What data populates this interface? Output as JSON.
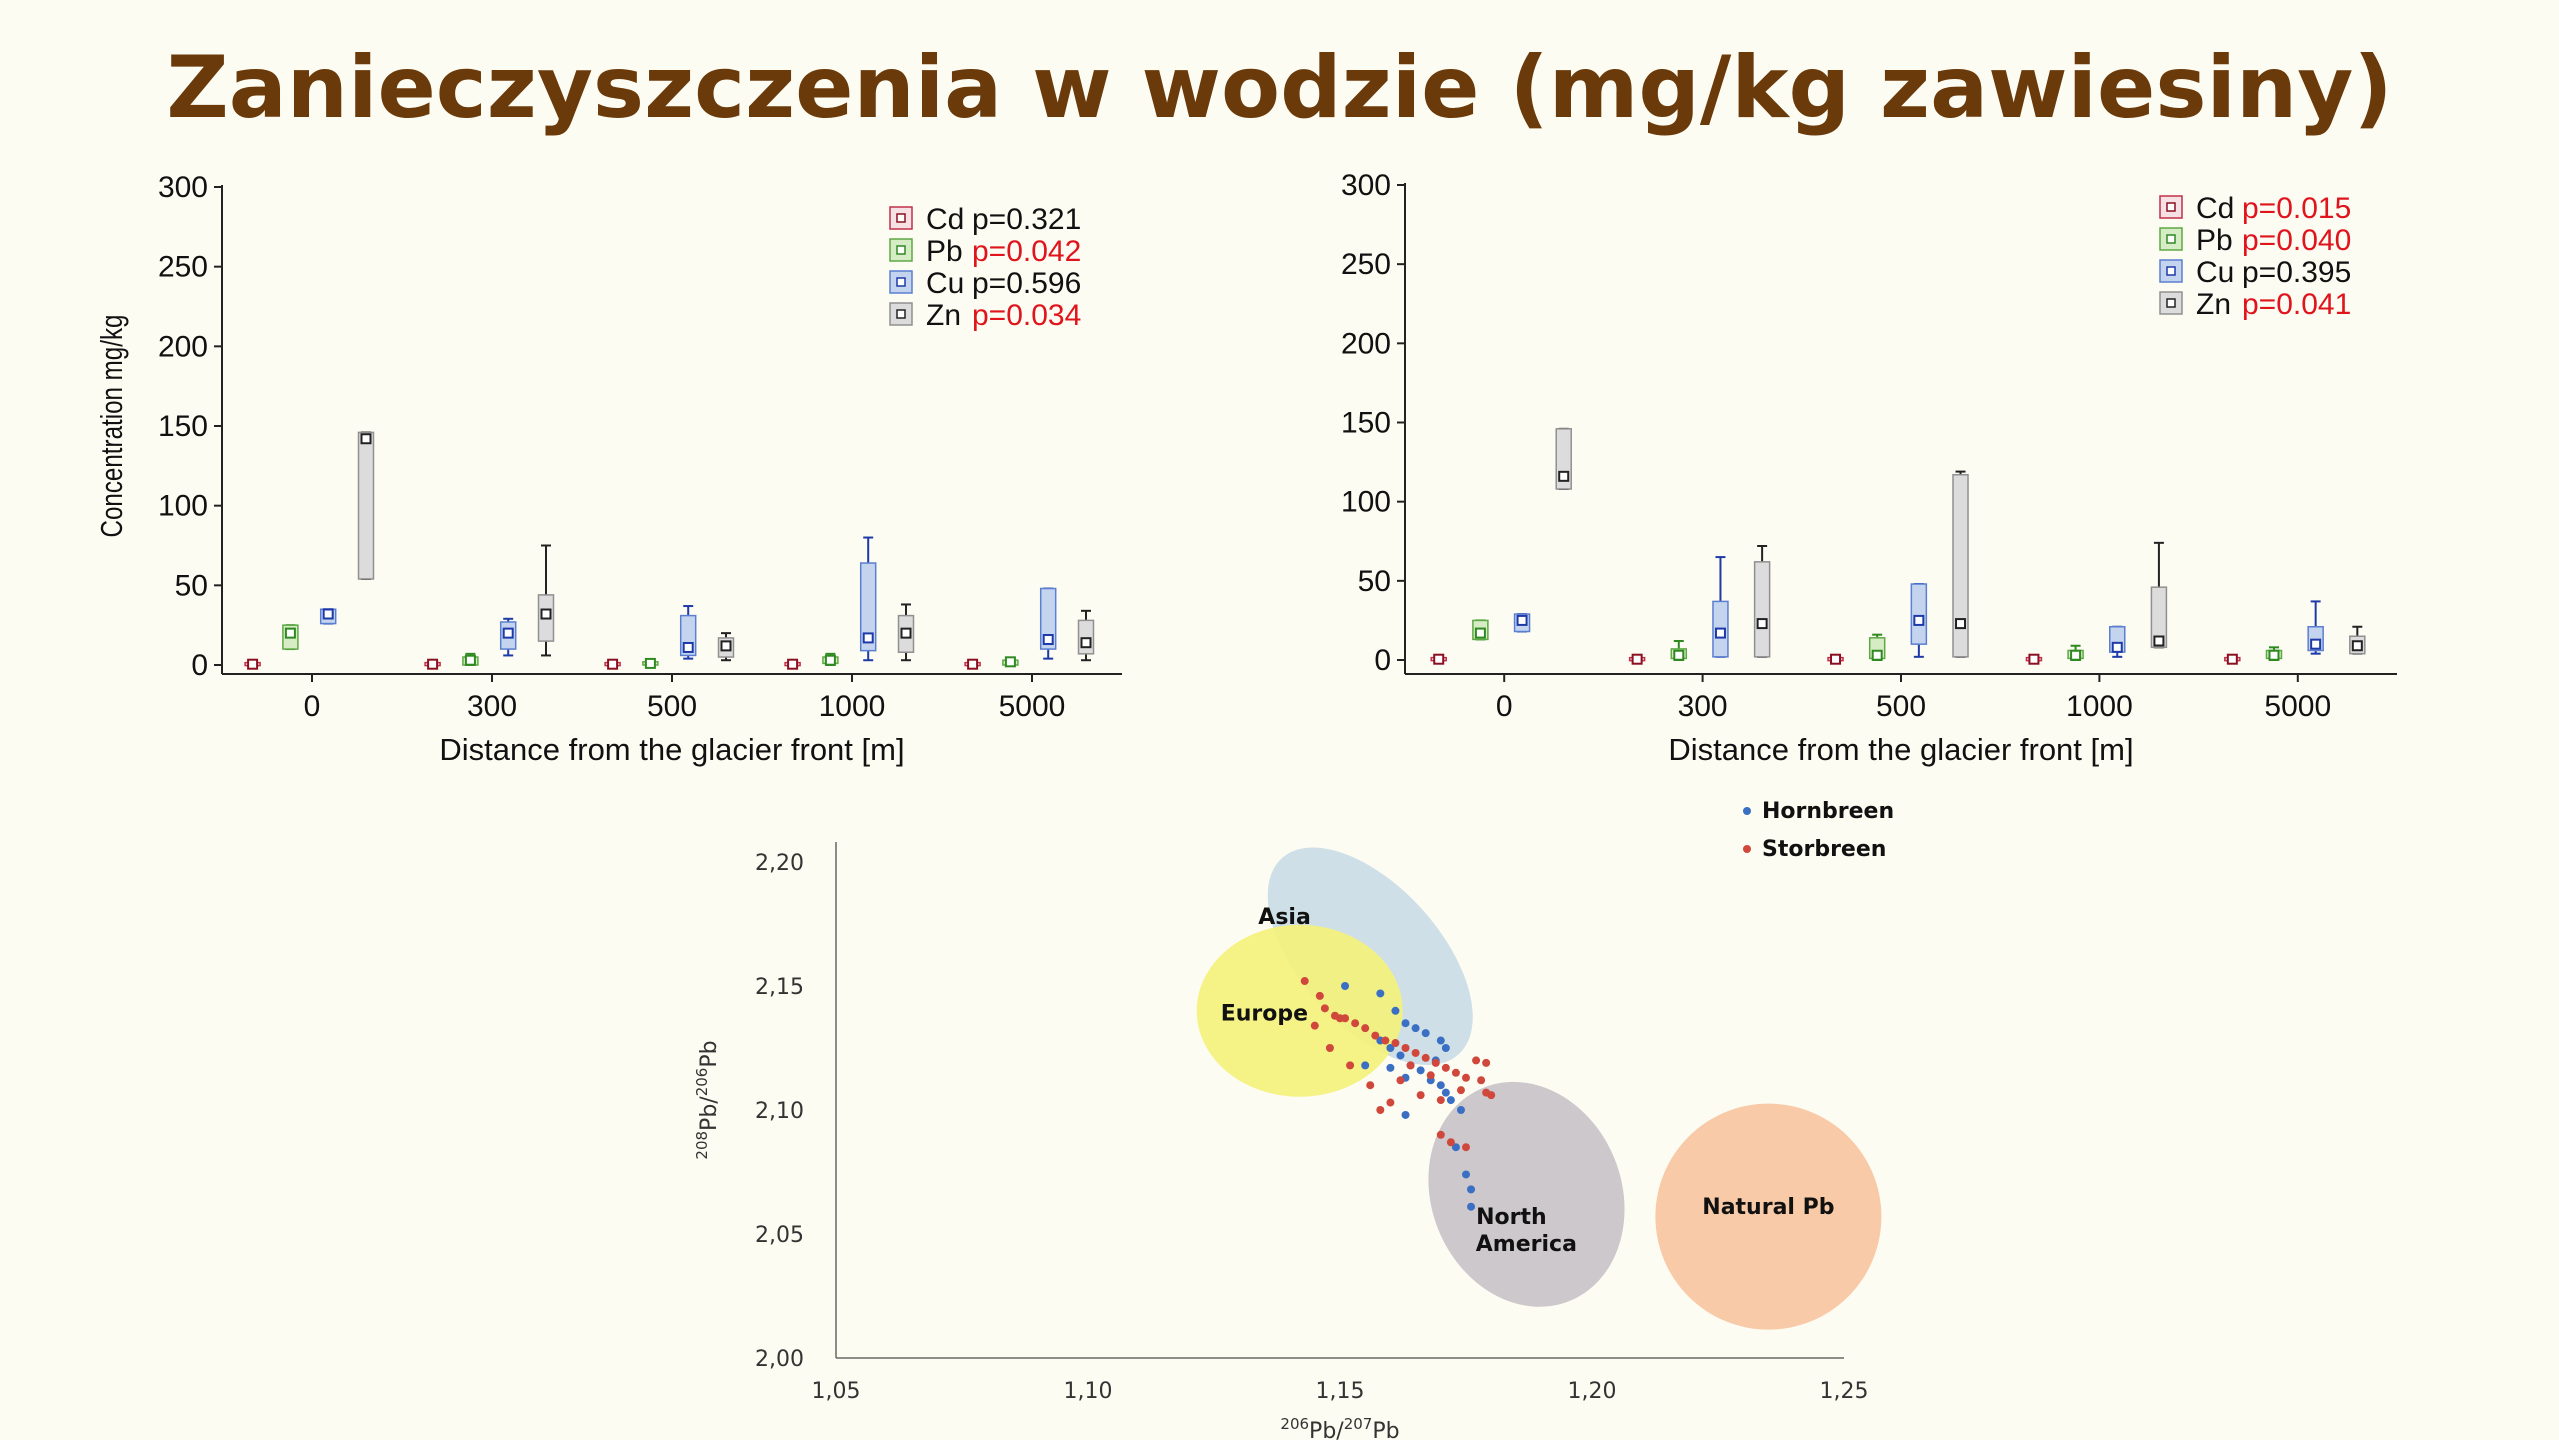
{
  "title": "Zanieczyszczenia w wodzie (mg/kg zawiesiny)",
  "colors": {
    "Cd": {
      "fill": "#f6e1e4",
      "stroke": "#c0304a",
      "marker": "#8a1020"
    },
    "Pb": {
      "fill": "#d6ecc4",
      "stroke": "#5ea845",
      "marker": "#2e8a20"
    },
    "Cu": {
      "fill": "#c4d4ef",
      "stroke": "#5b7fd0",
      "marker": "#1e3aa8"
    },
    "Zn": {
      "fill": "#dcdcdc",
      "stroke": "#909090",
      "marker": "#222222"
    }
  },
  "chart_data": [
    {
      "type": "box",
      "xlabel": "Distance from the glacier front [m]",
      "ylabel": "Concentration mg/kg",
      "ylim": [
        0,
        300
      ],
      "yticks": [
        "0",
        "50",
        "100",
        "150",
        "200",
        "250",
        "300"
      ],
      "categories": [
        "0",
        "300",
        "500",
        "1000",
        "5000"
      ],
      "legend": [
        {
          "metal": "Cd",
          "p": "p=0.321",
          "significant": false
        },
        {
          "metal": "Pb",
          "p": "p=0.042",
          "significant": true
        },
        {
          "metal": "Cu",
          "p": "p=0.596",
          "significant": false
        },
        {
          "metal": "Zn",
          "p": "p=0.034",
          "significant": true
        }
      ],
      "series": [
        {
          "name": "Cd",
          "boxes": [
            {
              "low": 0,
              "q1": 0,
              "median": 0.5,
              "q3": 1.5,
              "high": 1.5
            },
            {
              "low": 0,
              "q1": 0,
              "median": 0.5,
              "q3": 1.5,
              "high": 1.5
            },
            {
              "low": 0,
              "q1": 0,
              "median": 0.5,
              "q3": 1.5,
              "high": 1.5
            },
            {
              "low": 0,
              "q1": 0,
              "median": 0.5,
              "q3": 1.5,
              "high": 1.5
            },
            {
              "low": 0,
              "q1": 0,
              "median": 0.5,
              "q3": 1.5,
              "high": 1.5
            }
          ]
        },
        {
          "name": "Pb",
          "boxes": [
            {
              "low": 10,
              "q1": 10,
              "median": 20,
              "q3": 25,
              "high": 25
            },
            {
              "low": 0,
              "q1": 0,
              "median": 3,
              "q3": 5,
              "high": 7
            },
            {
              "low": 0,
              "q1": 0,
              "median": 1,
              "q3": 2,
              "high": 2
            },
            {
              "low": 0,
              "q1": 1,
              "median": 3,
              "q3": 5,
              "high": 7
            },
            {
              "low": 0,
              "q1": 0,
              "median": 2,
              "q3": 3,
              "high": 3
            }
          ]
        },
        {
          "name": "Cu",
          "boxes": [
            {
              "low": 26,
              "q1": 26,
              "median": 32,
              "q3": 35,
              "high": 35
            },
            {
              "low": 6,
              "q1": 10,
              "median": 20,
              "q3": 27,
              "high": 29
            },
            {
              "low": 4,
              "q1": 6,
              "median": 11,
              "q3": 31,
              "high": 37
            },
            {
              "low": 3,
              "q1": 9,
              "median": 17,
              "q3": 64,
              "high": 80
            },
            {
              "low": 4,
              "q1": 10,
              "median": 16,
              "q3": 48,
              "high": 48
            }
          ]
        },
        {
          "name": "Zn",
          "boxes": [
            {
              "low": 54,
              "q1": 54,
              "median": 142,
              "q3": 146,
              "high": 146
            },
            {
              "low": 6,
              "q1": 15,
              "median": 32,
              "q3": 44,
              "high": 75
            },
            {
              "low": 3,
              "q1": 5,
              "median": 12,
              "q3": 17,
              "high": 20
            },
            {
              "low": 3,
              "q1": 8,
              "median": 20,
              "q3": 31,
              "high": 38
            },
            {
              "low": 3,
              "q1": 7,
              "median": 14,
              "q3": 28,
              "high": 34
            }
          ]
        }
      ]
    },
    {
      "type": "box",
      "xlabel": "Distance from the glacier front [m]",
      "ylabel": "",
      "ylim": [
        0,
        300
      ],
      "yticks": [
        "0",
        "50",
        "100",
        "150",
        "200",
        "250",
        "300"
      ],
      "categories": [
        "0",
        "300",
        "500",
        "1000",
        "5000"
      ],
      "legend": [
        {
          "metal": "Cd",
          "p": "p=0.015",
          "significant": true
        },
        {
          "metal": "Pb",
          "p": "p=0.040",
          "significant": true
        },
        {
          "metal": "Cu",
          "p": "p=0.395",
          "significant": false
        },
        {
          "metal": "Zn",
          "p": "p=0.041",
          "significant": true
        }
      ],
      "series": [
        {
          "name": "Cd",
          "boxes": [
            {
              "low": 0,
              "q1": 0,
              "median": 0.5,
              "q3": 1.5,
              "high": 1.5
            },
            {
              "low": 0,
              "q1": 0,
              "median": 0.5,
              "q3": 1.5,
              "high": 1.5
            },
            {
              "low": 0,
              "q1": 0,
              "median": 0.5,
              "q3": 1.5,
              "high": 1.5
            },
            {
              "low": 0,
              "q1": 0,
              "median": 0.5,
              "q3": 1.5,
              "high": 1.5
            },
            {
              "low": 0,
              "q1": 0,
              "median": 0.5,
              "q3": 1.5,
              "high": 1.5
            }
          ]
        },
        {
          "name": "Pb",
          "boxes": [
            {
              "low": 13,
              "q1": 13,
              "median": 17,
              "q3": 25,
              "high": 25
            },
            {
              "low": 0,
              "q1": 1,
              "median": 3,
              "q3": 7,
              "high": 12
            },
            {
              "low": 0,
              "q1": 1,
              "median": 3,
              "q3": 14,
              "high": 16
            },
            {
              "low": 0,
              "q1": 1,
              "median": 3,
              "q3": 6,
              "high": 9
            },
            {
              "low": 0,
              "q1": 1,
              "median": 3,
              "q3": 6,
              "high": 8
            }
          ]
        },
        {
          "name": "Cu",
          "boxes": [
            {
              "low": 18,
              "q1": 18,
              "median": 25,
              "q3": 29,
              "high": 29
            },
            {
              "low": 2,
              "q1": 2,
              "median": 17,
              "q3": 37,
              "high": 65
            },
            {
              "low": 2,
              "q1": 10,
              "median": 25,
              "q3": 48,
              "high": 48
            },
            {
              "low": 2,
              "q1": 5,
              "median": 8,
              "q3": 21,
              "high": 21
            },
            {
              "low": 4,
              "q1": 6,
              "median": 10,
              "q3": 21,
              "high": 37
            }
          ]
        },
        {
          "name": "Zn",
          "boxes": [
            {
              "low": 108,
              "q1": 108,
              "median": 116,
              "q3": 146,
              "high": 146
            },
            {
              "low": 2,
              "q1": 2,
              "median": 23,
              "q3": 62,
              "high": 72
            },
            {
              "low": 2,
              "q1": 2,
              "median": 23,
              "q3": 117,
              "high": 119
            },
            {
              "low": 8,
              "q1": 8,
              "median": 12,
              "q3": 46,
              "high": 74
            },
            {
              "low": 4,
              "q1": 4,
              "median": 9,
              "q3": 15,
              "high": 21
            }
          ]
        }
      ]
    },
    {
      "type": "scatter",
      "xlabel_main": "Pb/",
      "xlabel_sup1": "206",
      "xlabel_sup2": "207",
      "ylabel_sup1": "208",
      "ylabel_sup2": "206",
      "ylabel_main": "Pb/",
      "xlim": [
        1.05,
        1.25
      ],
      "ylim": [
        2.0,
        2.2
      ],
      "xticks": [
        "1,05",
        "1,10",
        "1,15",
        "1,20",
        "1,25"
      ],
      "yticks": [
        "2,00",
        "2,05",
        "2,10",
        "2,15",
        "2,20"
      ],
      "legend": [
        {
          "name": "Hornbreen",
          "color": "#3a6fc4"
        },
        {
          "name": "Storbreen",
          "color": "#d0483c"
        }
      ],
      "regions": [
        {
          "name": "Asia",
          "color": "#c9dbe6"
        },
        {
          "name": "Europe",
          "color": "#f4f27a"
        },
        {
          "name": "North America",
          "color": "#c8c2c8"
        },
        {
          "name": "Natural Pb",
          "color": "#f7c49e"
        }
      ],
      "series": [
        {
          "name": "Hornbreen",
          "points": [
            [
              1.151,
              2.15
            ],
            [
              1.158,
              2.147
            ],
            [
              1.161,
              2.14
            ],
            [
              1.163,
              2.135
            ],
            [
              1.165,
              2.133
            ],
            [
              1.167,
              2.131
            ],
            [
              1.17,
              2.128
            ],
            [
              1.158,
              2.128
            ],
            [
              1.16,
              2.125
            ],
            [
              1.162,
              2.122
            ],
            [
              1.164,
              2.118
            ],
            [
              1.166,
              2.116
            ],
            [
              1.168,
              2.112
            ],
            [
              1.17,
              2.11
            ],
            [
              1.171,
              2.107
            ],
            [
              1.16,
              2.117
            ],
            [
              1.163,
              2.113
            ],
            [
              1.155,
              2.118
            ],
            [
              1.172,
              2.104
            ],
            [
              1.174,
              2.1
            ],
            [
              1.173,
              2.085
            ],
            [
              1.175,
              2.074
            ],
            [
              1.176,
              2.068
            ],
            [
              1.176,
              2.061
            ],
            [
              1.169,
              2.12
            ],
            [
              1.171,
              2.125
            ],
            [
              1.163,
              2.098
            ]
          ]
        },
        {
          "name": "Storbreen",
          "points": [
            [
              1.143,
              2.152
            ],
            [
              1.146,
              2.146
            ],
            [
              1.147,
              2.141
            ],
            [
              1.149,
              2.138
            ],
            [
              1.151,
              2.137
            ],
            [
              1.153,
              2.135
            ],
            [
              1.155,
              2.133
            ],
            [
              1.157,
              2.13
            ],
            [
              1.159,
              2.128
            ],
            [
              1.161,
              2.127
            ],
            [
              1.163,
              2.125
            ],
            [
              1.165,
              2.123
            ],
            [
              1.167,
              2.121
            ],
            [
              1.169,
              2.119
            ],
            [
              1.171,
              2.117
            ],
            [
              1.173,
              2.115
            ],
            [
              1.175,
              2.113
            ],
            [
              1.177,
              2.12
            ],
            [
              1.179,
              2.107
            ],
            [
              1.18,
              2.106
            ],
            [
              1.178,
              2.112
            ],
            [
              1.174,
              2.108
            ],
            [
              1.17,
              2.104
            ],
            [
              1.166,
              2.106
            ],
            [
              1.16,
              2.103
            ],
            [
              1.158,
              2.1
            ],
            [
              1.162,
              2.112
            ],
            [
              1.17,
              2.09
            ],
            [
              1.172,
              2.087
            ],
            [
              1.175,
              2.085
            ],
            [
              1.148,
              2.125
            ],
            [
              1.152,
              2.118
            ],
            [
              1.156,
              2.11
            ],
            [
              1.164,
              2.118
            ],
            [
              1.168,
              2.114
            ],
            [
              1.179,
              2.119
            ],
            [
              1.15,
              2.137
            ],
            [
              1.145,
              2.134
            ]
          ]
        }
      ]
    }
  ]
}
